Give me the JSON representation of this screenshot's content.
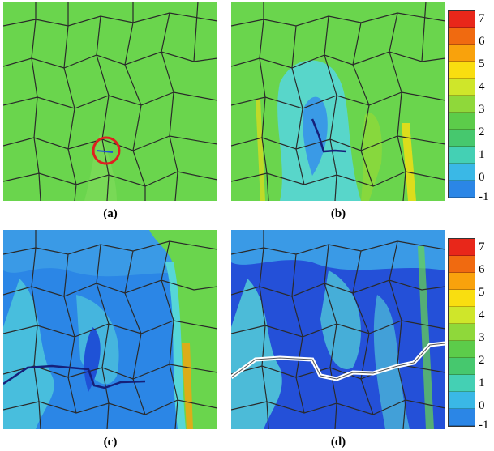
{
  "panels": [
    {
      "id": "a",
      "caption": "(a)"
    },
    {
      "id": "b",
      "caption": "(b)"
    },
    {
      "id": "c",
      "caption": "(c)"
    },
    {
      "id": "d",
      "caption": "(d)"
    }
  ],
  "colorbar": {
    "ticks": [
      "7",
      "6",
      "5",
      "4",
      "3",
      "2",
      "1",
      "0",
      "-1"
    ],
    "colors": [
      "#e8271a",
      "#f06a10",
      "#f9a20c",
      "#f9de10",
      "#cfe62a",
      "#8fd83a",
      "#5ccc4a",
      "#46c86e",
      "#44d0b4",
      "#3ab8e6",
      "#2b86e6",
      "#1f52d6",
      "#2030b8",
      "#16207a"
    ]
  },
  "colors": {
    "grain_green": "#6ad54d",
    "grain_lime": "#8fd83a",
    "cyan": "#56d6d8",
    "mid_blue": "#3a9ae6",
    "deep_blue": "#2450d8",
    "boundary": "#2a2a2a",
    "marker_circle": "#e02020",
    "crack": "#ffffff"
  }
}
